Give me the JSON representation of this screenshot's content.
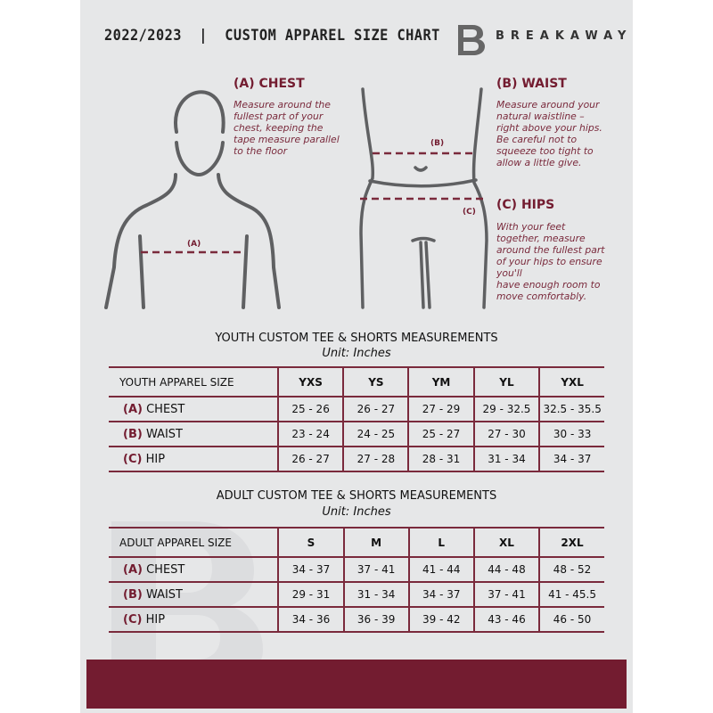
{
  "header": {
    "title": "2022/2023  |  CUSTOM APPAREL SIZE CHART",
    "brand": "BREAKAWAY",
    "logo_letter": "B"
  },
  "chest": {
    "heading": "(A) CHEST",
    "marker": "(A)",
    "lines": [
      "Measure around the",
      "fullest part of your",
      "chest, keeping the",
      "tape measure parallel",
      "to the floor"
    ]
  },
  "waist": {
    "heading": "(B) WAIST",
    "marker": "(B)",
    "lines": [
      "Measure around your",
      "natural waistline –",
      "right above your hips.",
      "Be careful not to",
      "squeeze too tight to",
      "allow a little give."
    ]
  },
  "hips": {
    "heading": "(C) HIPS",
    "marker": "(C)",
    "lines": [
      "With your feet",
      "together, measure",
      "around the fullest part",
      "of your hips to ensure",
      "you'll",
      "have enough room to",
      "move comfortably."
    ]
  },
  "youth": {
    "title": "YOUTH CUSTOM TEE & SHORTS MEASUREMENTS",
    "unit": "Unit: Inches",
    "header": "YOUTH APPAREL SIZE",
    "sizes": [
      "YXS",
      "YS",
      "YM",
      "YL",
      "YXL"
    ],
    "rows": [
      {
        "letter": "(A)",
        "name": "CHEST",
        "values": [
          "25 - 26",
          "26 - 27",
          "27 - 29",
          "29 - 32.5",
          "32.5 - 35.5"
        ]
      },
      {
        "letter": "(B)",
        "name": "WAIST",
        "values": [
          "23 - 24",
          "24 - 25",
          "25 - 27",
          "27 - 30",
          "30 - 33"
        ]
      },
      {
        "letter": "(C)",
        "name": "HIP",
        "values": [
          "26 - 27",
          "27 - 28",
          "28 - 31",
          "31 - 34",
          "34 - 37"
        ]
      }
    ]
  },
  "adult": {
    "title": "ADULT CUSTOM TEE & SHORTS MEASUREMENTS",
    "unit": "Unit: Inches",
    "header": "ADULT APPAREL SIZE",
    "sizes": [
      "S",
      "M",
      "L",
      "XL",
      "2XL"
    ],
    "rows": [
      {
        "letter": "(A)",
        "name": "CHEST",
        "values": [
          "34 - 37",
          "37 - 41",
          "41 - 44",
          "44 - 48",
          "48 - 52"
        ]
      },
      {
        "letter": "(B)",
        "name": "WAIST",
        "values": [
          "29 - 31",
          "31 - 34",
          "34 - 37",
          "37 - 41",
          "41 - 45.5"
        ]
      },
      {
        "letter": "(C)",
        "name": "HIP",
        "values": [
          "34 - 36",
          "36 - 39",
          "39 - 42",
          "43 - 46",
          "46 - 50"
        ]
      }
    ]
  },
  "colors": {
    "accent": "#731c30",
    "panel": "#e6e7e8"
  }
}
